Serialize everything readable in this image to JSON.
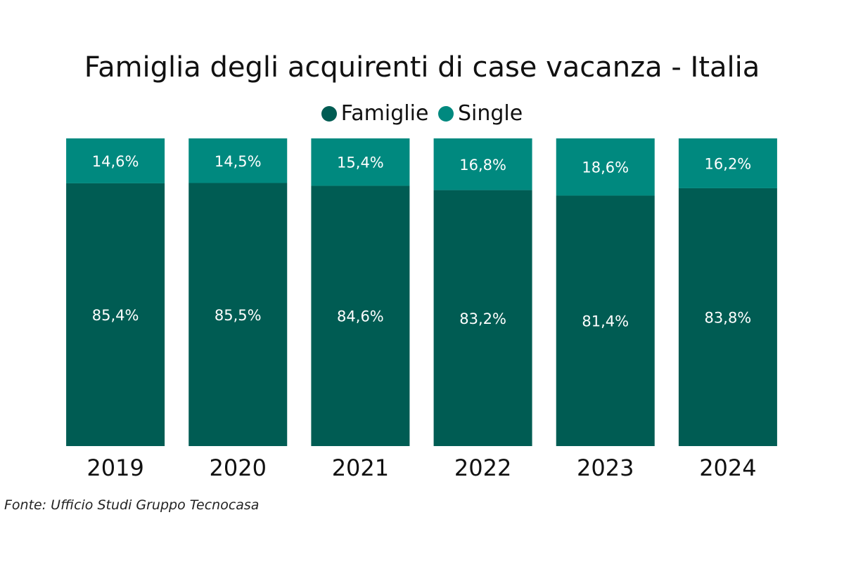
{
  "chart_data": {
    "type": "bar",
    "stacked": true,
    "title": "Famiglia degli acquirenti di case vacanza - Italia",
    "categories": [
      "2019",
      "2020",
      "2021",
      "2022",
      "2023",
      "2024"
    ],
    "series": [
      {
        "name": "Famiglie",
        "color": "#005c53",
        "values": [
          85.4,
          85.5,
          84.6,
          83.2,
          81.4,
          83.8
        ],
        "labels": [
          "85,4%",
          "85,5%",
          "84,6%",
          "83,2%",
          "81,4%",
          "83,8%"
        ]
      },
      {
        "name": "Single",
        "color": "#00897f",
        "values": [
          14.6,
          14.5,
          15.4,
          16.8,
          18.6,
          16.2
        ],
        "labels": [
          "14,6%",
          "14,5%",
          "15,4%",
          "16,8%",
          "18,6%",
          "16,2%"
        ]
      }
    ],
    "ylim": [
      0,
      100
    ],
    "grid": false,
    "legend_position": "top-center",
    "xlabel": "",
    "ylabel": ""
  },
  "source": "Fonte: Ufficio Studi Gruppo Tecnocasa"
}
